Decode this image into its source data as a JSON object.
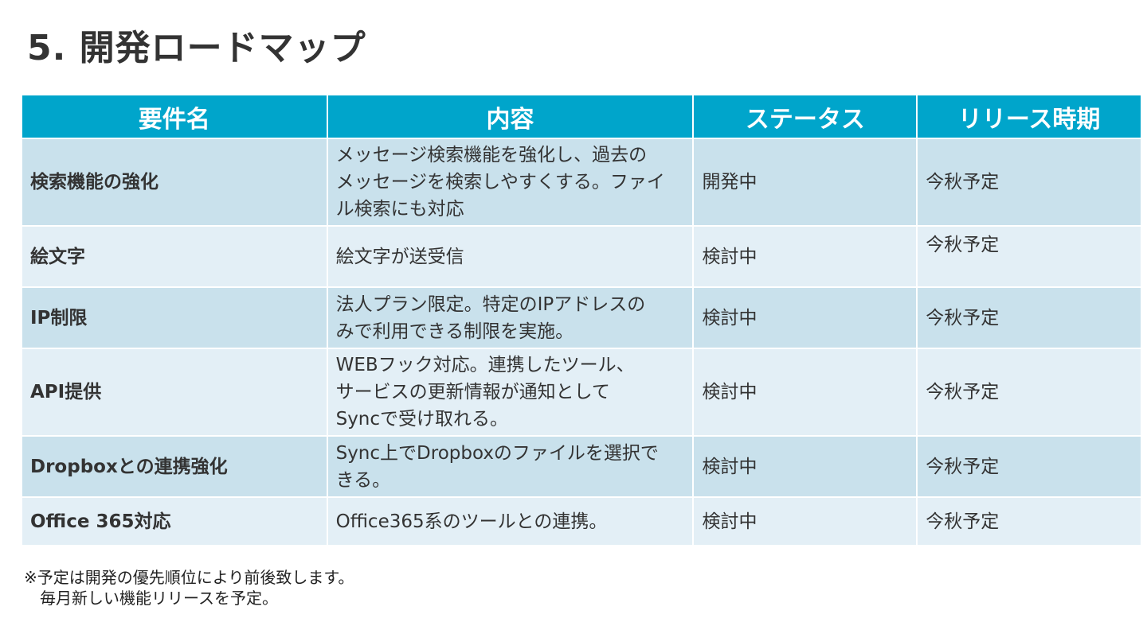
{
  "title": "5. 開発ロードマップ",
  "colors": {
    "header": "#00a5cb",
    "row_dark": "#c9e1ec",
    "row_light": "#e3eff6"
  },
  "table": {
    "headers": [
      "要件名",
      "内容",
      "ステータス",
      "リリース時期"
    ],
    "rows": [
      {
        "name": "検索機能の強化",
        "content": "メッセージ検索機能を強化し、過去の\nメッセージを検索しやすくする。ファイ\nル検索にも対応",
        "status": "開発中",
        "release": "今秋予定"
      },
      {
        "name": "絵文字",
        "content": "絵文字が送受信",
        "status": "検討中",
        "release": "今秋予定"
      },
      {
        "name": "IP制限",
        "content": "法人プラン限定。特定のIPアドレスの\nみで利用できる制限を実施。",
        "status": "検討中",
        "release": "今秋予定"
      },
      {
        "name": "API提供",
        "content": "WEBフック対応。連携したツール、\nサービスの更新情報が通知として\nSyncで受け取れる。",
        "status": "検討中",
        "release": "今秋予定"
      },
      {
        "name": "Dropboxとの連携強化",
        "content": "Sync上でDropboxのファイルを選択で\nきる。",
        "status": "検討中",
        "release": "今秋予定"
      },
      {
        "name": "Office 365対応",
        "content": "Office365系のツールとの連携。",
        "status": "検討中",
        "release": "今秋予定"
      }
    ]
  },
  "note": "※予定は開発の優先順位により前後致します。\n　毎月新しい機能リリースを予定。"
}
